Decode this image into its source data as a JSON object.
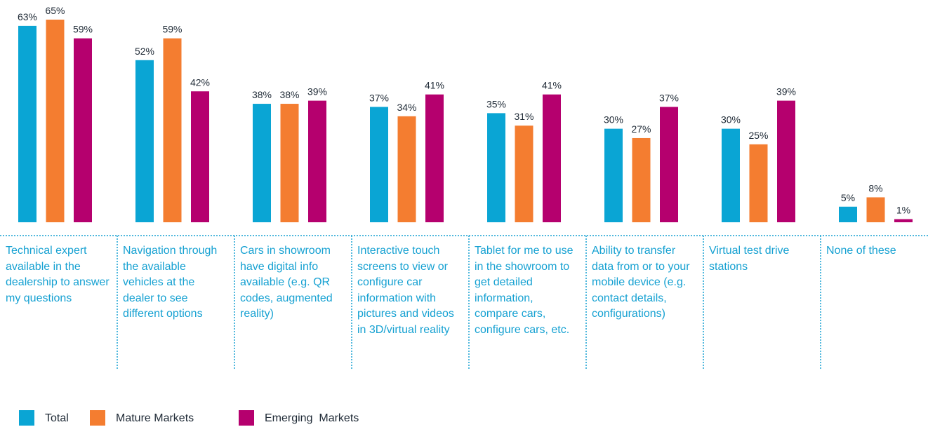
{
  "chart_data": {
    "type": "bar",
    "categories": [
      "Technical expert available in the dealership to answer my questions",
      "Navigation through the available vehicles at the dealer to see different options",
      "Cars in showroom have digital info available (e.g. QR codes, augmented reality)",
      "Interactive touch screens to view or configure car information with pictures and videos in 3D/virtual reality",
      "Tablet for me to use in the showroom to get detailed information, compare cars, configure cars, etc.",
      "Ability to transfer data from or to your mobile device (e.g. contact details, configurations)",
      "Virtual test drive stations",
      "None of these"
    ],
    "series": [
      {
        "name": "Total",
        "color": "#0aa5d4",
        "values": [
          63,
          52,
          38,
          37,
          35,
          30,
          30,
          5
        ],
        "value_labels": [
          "63%",
          "52%",
          "38%",
          "37%",
          "35%",
          "30%",
          "30%",
          "5%"
        ]
      },
      {
        "name": "Mature Markets",
        "color": "#f47d30",
        "values": [
          65,
          59,
          38,
          34,
          31,
          27,
          25,
          8
        ],
        "value_labels": [
          "65%",
          "59%",
          "38%",
          "34%",
          "31%",
          "27%",
          "25%",
          "8%"
        ]
      },
      {
        "name": "Emerging  Markets",
        "color": "#b5006e",
        "values": [
          59,
          42,
          39,
          41,
          41,
          37,
          39,
          1
        ],
        "value_labels": [
          "59%",
          "42%",
          "39%",
          "41%",
          "41%",
          "37%",
          "39%",
          "1%"
        ]
      }
    ],
    "ylim": [
      0,
      65
    ]
  }
}
